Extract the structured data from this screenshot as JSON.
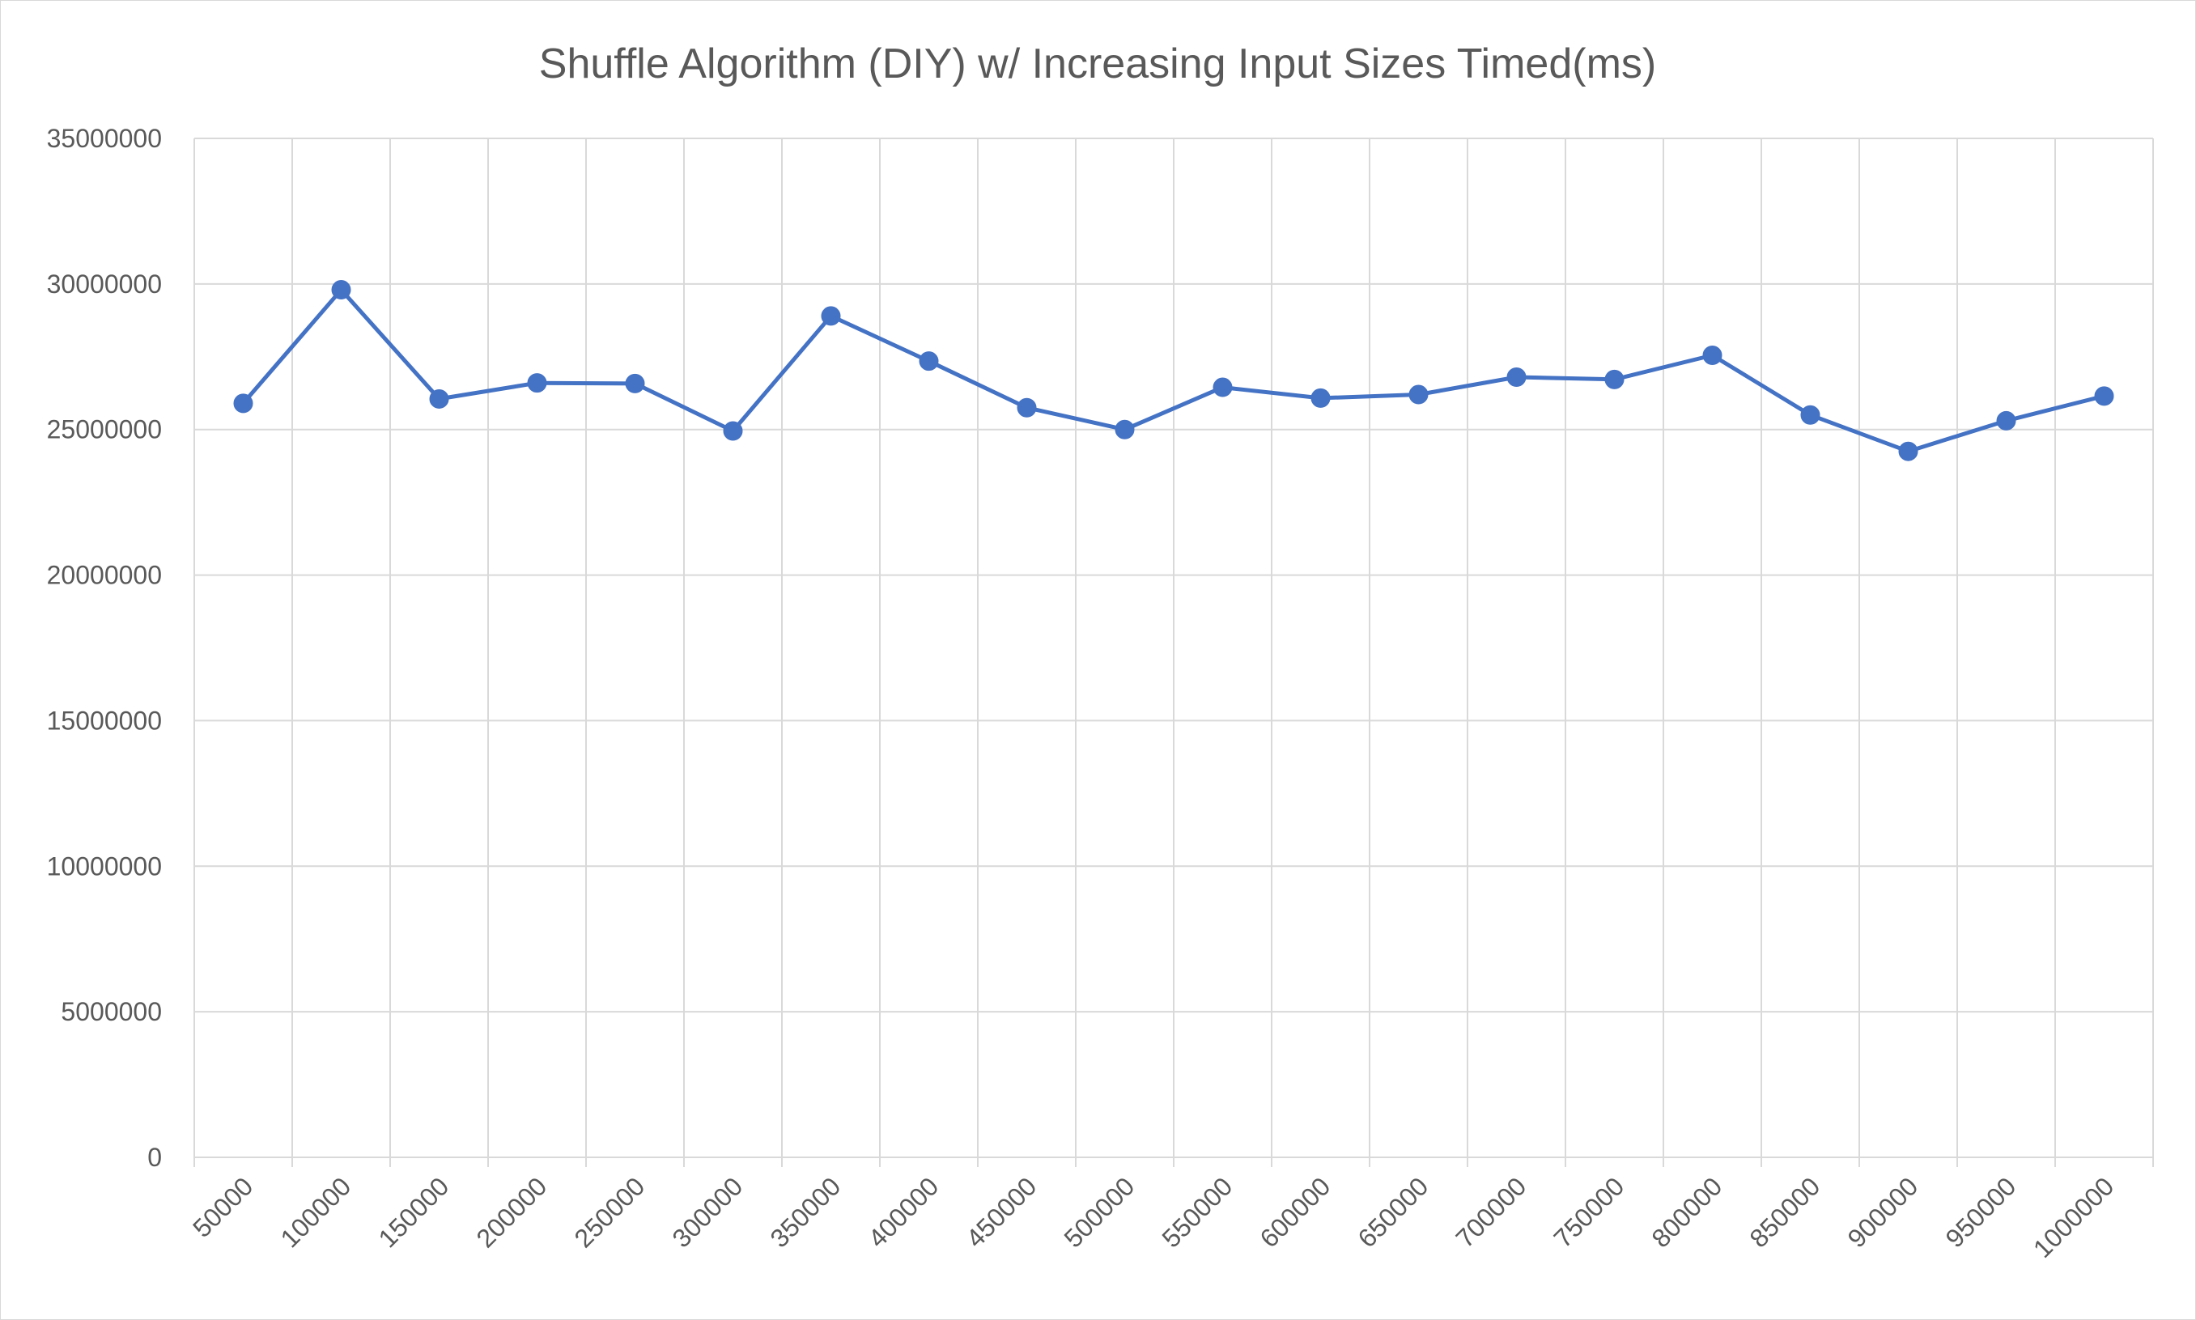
{
  "chart_data": {
    "type": "line",
    "title": "Shuffle Algorithm (DIY) w/ Increasing Input Sizes Timed(ms)",
    "xlabel": "",
    "ylabel": "",
    "categories": [
      "50000",
      "100000",
      "150000",
      "200000",
      "250000",
      "300000",
      "350000",
      "400000",
      "450000",
      "500000",
      "550000",
      "600000",
      "650000",
      "700000",
      "750000",
      "800000",
      "850000",
      "900000",
      "950000",
      "1000000"
    ],
    "series": [
      {
        "color": "#4472c4",
        "values": [
          25900000,
          29800000,
          26050000,
          26600000,
          26580000,
          24950000,
          28900000,
          27350000,
          25750000,
          25000000,
          26450000,
          26080000,
          26200000,
          26800000,
          26720000,
          27550000,
          25500000,
          24250000,
          25300000,
          26150000
        ]
      }
    ],
    "ylim": [
      0,
      35000000
    ],
    "y_ticks": [
      "0",
      "5000000",
      "10000000",
      "15000000",
      "20000000",
      "25000000",
      "30000000",
      "35000000"
    ],
    "grid": true,
    "legend": "none",
    "colors": {
      "series": "#4472c4",
      "grid": "#d9d9d9",
      "text": "#595959"
    }
  }
}
